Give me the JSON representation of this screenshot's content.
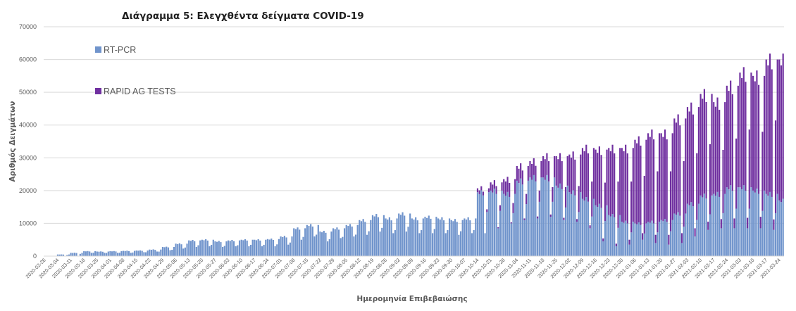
{
  "chart_data": {
    "type": "bar",
    "stacked": true,
    "title": "Διάγραμμα 5: Ελεγχθέντα δείγματα COVID-19",
    "xlabel": "Ημερομηνία Επιβεβαιώσης",
    "ylabel": "Αριθμός Δειγμάτων",
    "ylim": [
      0,
      70000
    ],
    "yticks": [
      0,
      10000,
      20000,
      30000,
      40000,
      50000,
      60000,
      70000
    ],
    "x_start": "2020-02-26",
    "x_end": "2021-03-26",
    "xtick_labels": [
      "2020-02-26",
      "2020-03-04",
      "2020-03-11",
      "2020-03-18",
      "2020-03-25",
      "2020-04-01",
      "2020-04-08",
      "2020-04-15",
      "2020-04-22",
      "2020-04-29",
      "2020-05-06",
      "2020-05-13",
      "2020-05-20",
      "2020-05-27",
      "2020-06-03",
      "2020-06-10",
      "2020-06-17",
      "2020-06-24",
      "2020-07-01",
      "2020-07-08",
      "2020-07-15",
      "2020-07-22",
      "2020-07-29",
      "2020-08-05",
      "2020-08-12",
      "2020-08-19",
      "2020-08-26",
      "2020-09-02",
      "2020-09-09",
      "2020-09-16",
      "2020-09-23",
      "2020-09-30",
      "2020-10-07",
      "2020-10-14",
      "2020-10-21",
      "2020-10-28",
      "2020-11-04",
      "2020-11-11",
      "2020-11-18",
      "2020-11-25",
      "2020-12-02",
      "2020-12-09",
      "2020-12-16",
      "2020-12-23",
      "2020-12-30",
      "2021-01-06",
      "2021-01-13",
      "2021-01-20",
      "2021-01-27",
      "2021-02-03",
      "2021-02-10",
      "2021-02-17",
      "2021-02-24",
      "2021-03-03",
      "2021-03-10",
      "2021-03-17",
      "2021-03-24"
    ],
    "grid": true,
    "legend_position": "top-left",
    "series": [
      {
        "name": "RT-PCR",
        "color": "#7094cc",
        "weekly_values": [
          100,
          500,
          1000,
          1500,
          1400,
          1500,
          1600,
          1700,
          2000,
          2800,
          3800,
          4800,
          5000,
          4500,
          4800,
          5000,
          5000,
          5200,
          6000,
          8500,
          9500,
          7500,
          8500,
          9500,
          11000,
          12500,
          11500,
          13000,
          11500,
          12000,
          11500,
          11000,
          11500,
          19500,
          20000,
          19000,
          23000,
          24000,
          24000,
          21500,
          19500,
          17500,
          15500,
          12500,
          10500,
          10000,
          10500,
          11000,
          13000,
          16000,
          18500,
          19000,
          21000,
          21000,
          20000,
          19000,
          17000
        ],
        "weekly_dips": [
          0,
          0,
          0,
          1000,
          1000,
          1000,
          1000,
          1200,
          1400,
          1800,
          2300,
          2800,
          3000,
          2800,
          3000,
          3000,
          3000,
          3000,
          3500,
          5000,
          6000,
          4500,
          5500,
          6000,
          6500,
          7500,
          7000,
          7500,
          7000,
          7000,
          7000,
          6500,
          7000,
          7000,
          8500,
          10000,
          11000,
          11500,
          12000,
          11000,
          10500,
          8500,
          4500,
          3000,
          3500,
          5000,
          4000,
          3500,
          4000,
          6000,
          8000,
          8500,
          8500,
          8500,
          8500,
          8000,
          6000
        ]
      },
      {
        "name": "RAPID AG TESTS",
        "color": "#7030a0",
        "weekly_values": [
          0,
          0,
          0,
          0,
          0,
          0,
          0,
          0,
          0,
          0,
          0,
          0,
          0,
          0,
          0,
          0,
          0,
          0,
          0,
          0,
          0,
          0,
          0,
          0,
          0,
          0,
          0,
          0,
          0,
          0,
          0,
          0,
          0,
          1200,
          2500,
          4500,
          4500,
          5000,
          6500,
          9000,
          11500,
          15500,
          17000,
          20500,
          22500,
          25500,
          27000,
          26500,
          29000,
          29500,
          31000,
          28000,
          31000,
          35000,
          35000,
          41000,
          43000
        ],
        "weekly_dips": [
          0,
          0,
          0,
          0,
          0,
          0,
          0,
          0,
          0,
          0,
          0,
          0,
          0,
          0,
          0,
          0,
          0,
          0,
          0,
          0,
          0,
          0,
          0,
          0,
          0,
          0,
          0,
          0,
          0,
          0,
          0,
          0,
          0,
          0,
          300,
          300,
          500,
          600,
          700,
          700,
          800,
          900,
          900,
          800,
          1500,
          2000,
          2500,
          3000,
          3000,
          2500,
          2500,
          2800,
          3000,
          3200,
          3500,
          3200,
          3500
        ]
      }
    ]
  }
}
